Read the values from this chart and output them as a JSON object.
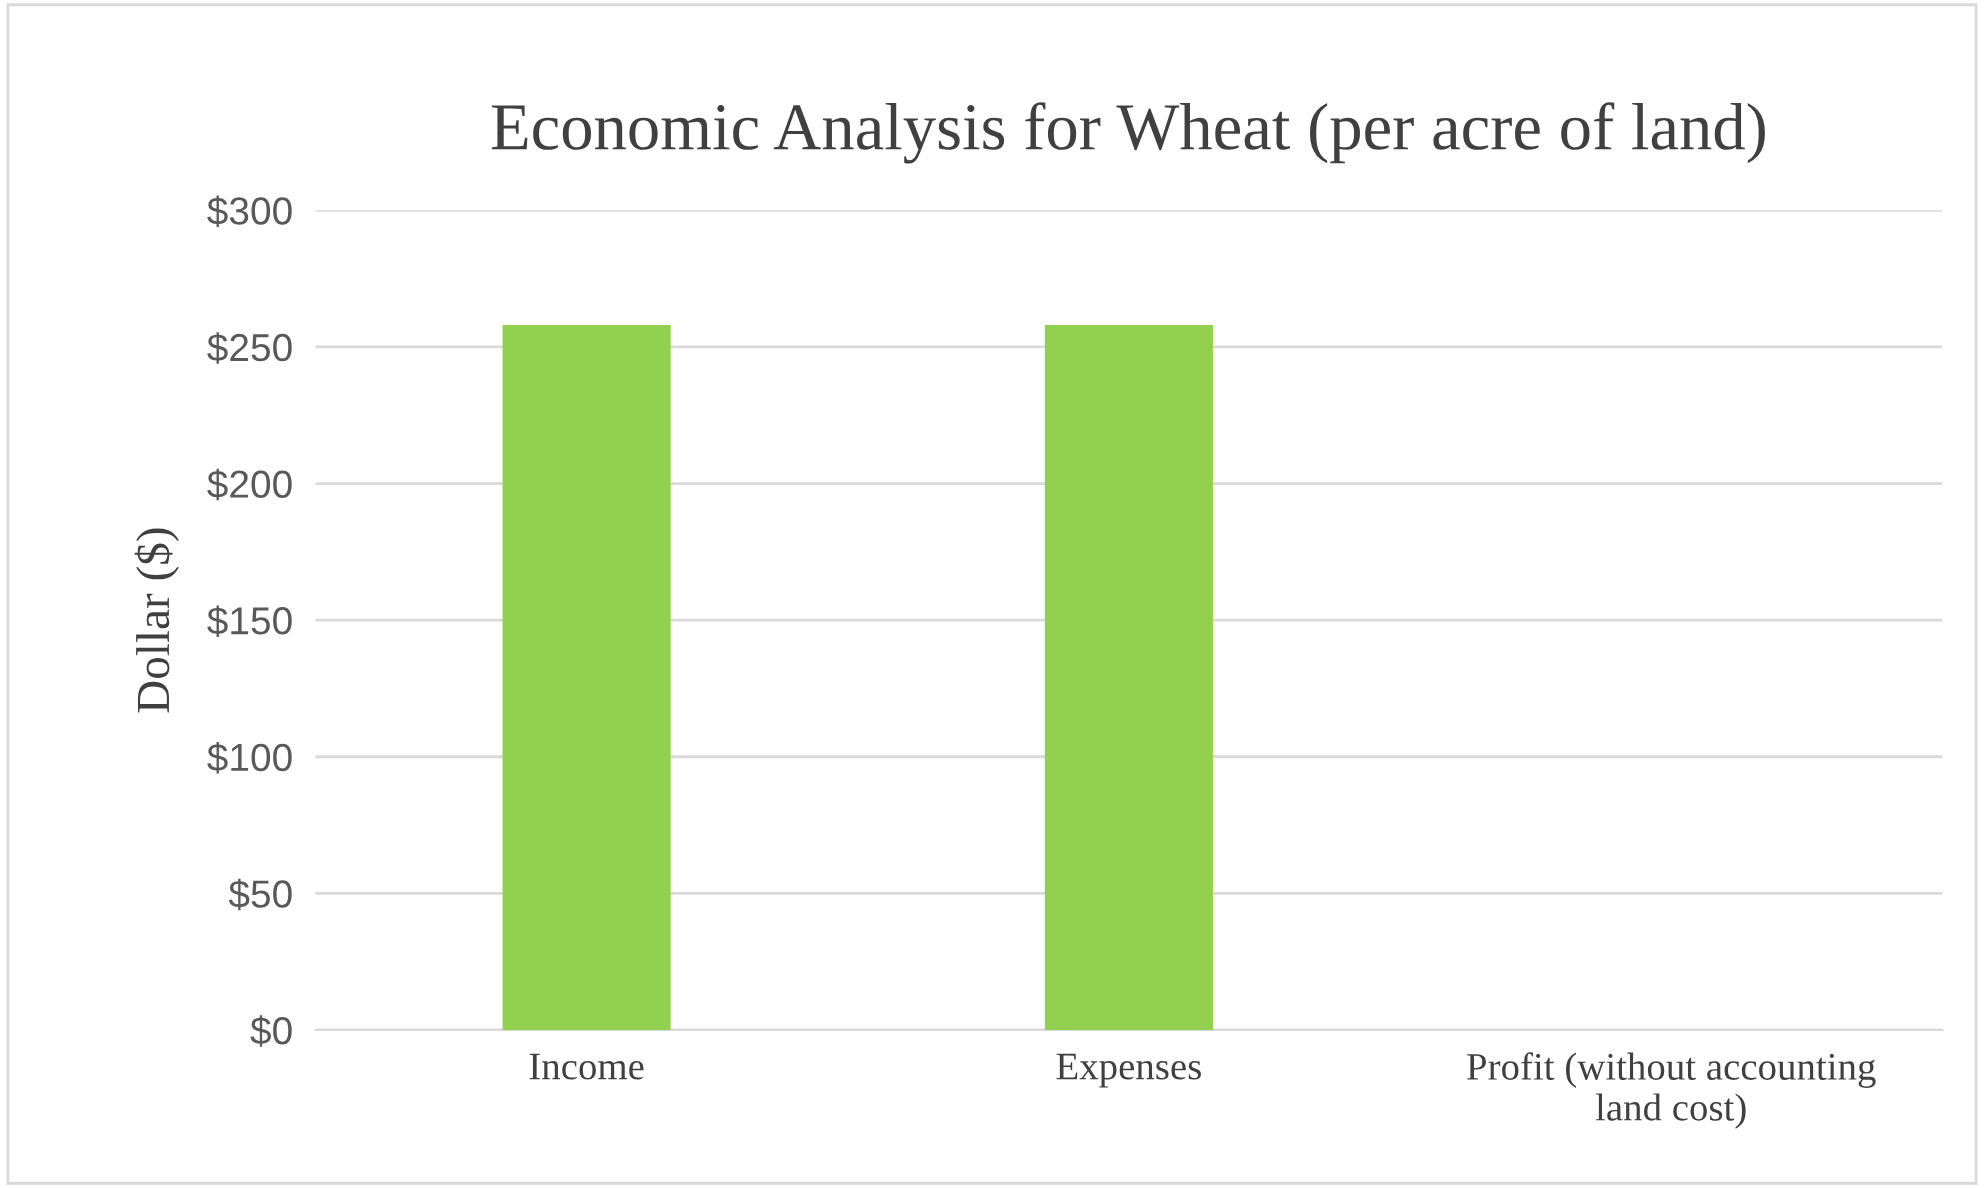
{
  "chart_data": {
    "type": "bar",
    "title": "Economic Analysis for Wheat (per acre of land)",
    "ylabel": "Dollar ($)",
    "categories": [
      "Income",
      "Expenses",
      "Profit (without accounting\nland cost)"
    ],
    "values": [
      258,
      258,
      0
    ],
    "color": "#92d050",
    "ylim": [
      0,
      300
    ],
    "yticks": [
      {
        "value": 0,
        "label": "$0"
      },
      {
        "value": 50,
        "label": "$50"
      },
      {
        "value": 100,
        "label": "$100"
      },
      {
        "value": 150,
        "label": "$150"
      },
      {
        "value": 200,
        "label": "$200"
      },
      {
        "value": 250,
        "label": "$250"
      },
      {
        "value": 300,
        "label": "$300"
      }
    ],
    "grid": "y"
  }
}
